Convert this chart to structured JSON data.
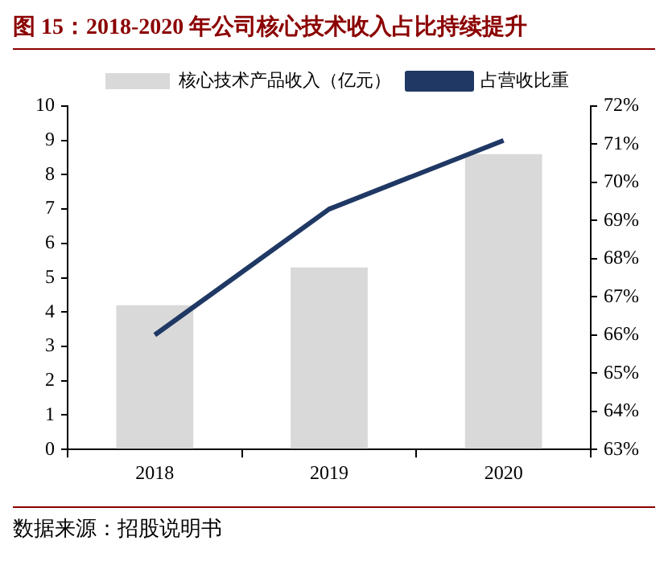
{
  "chart_data": {
    "type": "bar",
    "title": "图 15：2018-2020 年公司核心技术收入占比持续提升",
    "categories": [
      "2018",
      "2019",
      "2020"
    ],
    "series": [
      {
        "name": "核心技术产品收入（亿元）",
        "color": "#d9d9d9",
        "values": [
          4.2,
          5.3,
          8.6
        ]
      },
      {
        "name": "占营收比重",
        "type": "line",
        "color": "#1f3864",
        "axis": "y2",
        "marker": "none",
        "values": [
          66.0,
          69.3,
          71.1
        ]
      }
    ],
    "ylim": [
      0,
      10
    ],
    "yticks": [
      0,
      1,
      2,
      3,
      4,
      5,
      6,
      7,
      8,
      9,
      10
    ],
    "y2lim": [
      63,
      72
    ],
    "y2ticks": [
      {
        "value": 63,
        "label": "63%"
      },
      {
        "value": 64,
        "label": "64%"
      },
      {
        "value": 65,
        "label": "65%"
      },
      {
        "value": 66,
        "label": "66%"
      },
      {
        "value": 67,
        "label": "67%"
      },
      {
        "value": 68,
        "label": "68%"
      },
      {
        "value": 69,
        "label": "69%"
      },
      {
        "value": 70,
        "label": "70%"
      },
      {
        "value": 71,
        "label": "71%"
      },
      {
        "value": 72,
        "label": "72%"
      }
    ],
    "grid": false,
    "legend": "top",
    "annotations": [
      "数据来源：招股说明书"
    ]
  }
}
